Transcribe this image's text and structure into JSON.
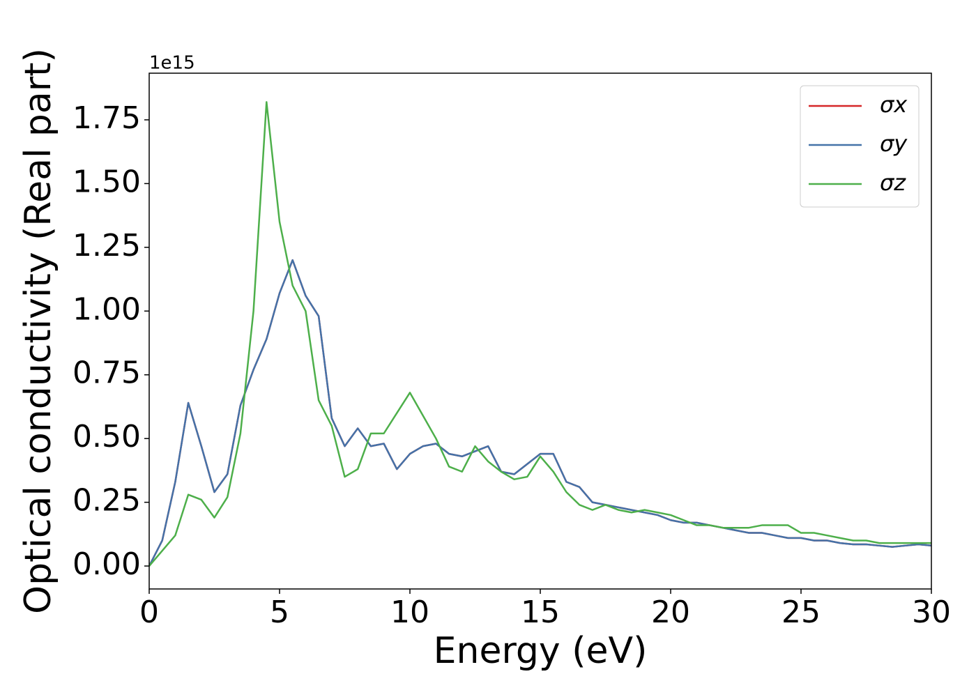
{
  "chart_data": {
    "type": "line",
    "xlabel": "Energy (eV)",
    "ylabel": "Optical conductivity (Real part)",
    "y_offset_text": "1e15",
    "x": [
      0,
      0.5,
      1,
      1.5,
      2,
      2.5,
      3,
      3.5,
      4,
      4.5,
      5,
      5.5,
      6,
      6.5,
      7,
      7.5,
      8,
      8.5,
      9,
      9.5,
      10,
      10.5,
      11,
      11.5,
      12,
      12.5,
      13,
      13.5,
      14,
      14.5,
      15,
      15.5,
      16,
      16.5,
      17,
      17.5,
      18,
      18.5,
      19,
      19.5,
      20,
      20.5,
      21,
      21.5,
      22,
      22.5,
      23,
      23.5,
      24,
      24.5,
      25,
      25.5,
      26,
      26.5,
      27,
      27.5,
      28,
      28.5,
      29,
      29.5,
      30
    ],
    "series": [
      {
        "name": "σx",
        "color": "#d62728",
        "values": [
          0,
          0.1,
          0.33,
          0.64,
          0.47,
          0.29,
          0.36,
          0.63,
          0.77,
          0.89,
          1.07,
          1.2,
          1.06,
          0.98,
          0.58,
          0.47,
          0.54,
          0.47,
          0.48,
          0.38,
          0.44,
          0.47,
          0.48,
          0.44,
          0.43,
          0.45,
          0.47,
          0.37,
          0.36,
          0.4,
          0.44,
          0.44,
          0.33,
          0.31,
          0.25,
          0.24,
          0.23,
          0.22,
          0.21,
          0.2,
          0.18,
          0.17,
          0.17,
          0.16,
          0.15,
          0.14,
          0.13,
          0.13,
          0.12,
          0.11,
          0.11,
          0.1,
          0.1,
          0.09,
          0.085,
          0.085,
          0.08,
          0.075,
          0.08,
          0.085,
          0.08
        ]
      },
      {
        "name": "σy",
        "color": "#4472a8",
        "values": [
          0,
          0.1,
          0.33,
          0.64,
          0.47,
          0.29,
          0.36,
          0.63,
          0.77,
          0.89,
          1.07,
          1.2,
          1.06,
          0.98,
          0.58,
          0.47,
          0.54,
          0.47,
          0.48,
          0.38,
          0.44,
          0.47,
          0.48,
          0.44,
          0.43,
          0.45,
          0.47,
          0.37,
          0.36,
          0.4,
          0.44,
          0.44,
          0.33,
          0.31,
          0.25,
          0.24,
          0.23,
          0.22,
          0.21,
          0.2,
          0.18,
          0.17,
          0.17,
          0.16,
          0.15,
          0.14,
          0.13,
          0.13,
          0.12,
          0.11,
          0.11,
          0.1,
          0.1,
          0.09,
          0.085,
          0.085,
          0.08,
          0.075,
          0.08,
          0.085,
          0.08
        ]
      },
      {
        "name": "σz",
        "color": "#4daf4a",
        "values": [
          0,
          0.06,
          0.12,
          0.28,
          0.26,
          0.19,
          0.27,
          0.52,
          1.0,
          1.82,
          1.35,
          1.1,
          1.0,
          0.65,
          0.55,
          0.35,
          0.38,
          0.52,
          0.52,
          0.6,
          0.68,
          0.59,
          0.5,
          0.39,
          0.37,
          0.47,
          0.41,
          0.37,
          0.34,
          0.35,
          0.43,
          0.37,
          0.29,
          0.24,
          0.22,
          0.24,
          0.22,
          0.21,
          0.22,
          0.21,
          0.2,
          0.18,
          0.16,
          0.16,
          0.15,
          0.15,
          0.15,
          0.16,
          0.16,
          0.16,
          0.13,
          0.13,
          0.12,
          0.11,
          0.1,
          0.1,
          0.09,
          0.09,
          0.09,
          0.09,
          0.09
        ]
      }
    ],
    "xlim": [
      0,
      30
    ],
    "ylim": [
      -0.09,
      1.933
    ],
    "xticks": [
      0,
      5,
      10,
      15,
      20,
      25,
      30
    ],
    "yticks": [
      {
        "value": 0,
        "label": "0.00"
      },
      {
        "value": 0.25,
        "label": "0.25"
      },
      {
        "value": 0.5,
        "label": "0.50"
      },
      {
        "value": 0.75,
        "label": "0.75"
      },
      {
        "value": 1,
        "label": "1.00"
      },
      {
        "value": 1.25,
        "label": "1.25"
      },
      {
        "value": 1.5,
        "label": "1.50"
      },
      {
        "value": 1.75,
        "label": "1.75"
      }
    ],
    "grid": false,
    "legend": "upper right"
  }
}
